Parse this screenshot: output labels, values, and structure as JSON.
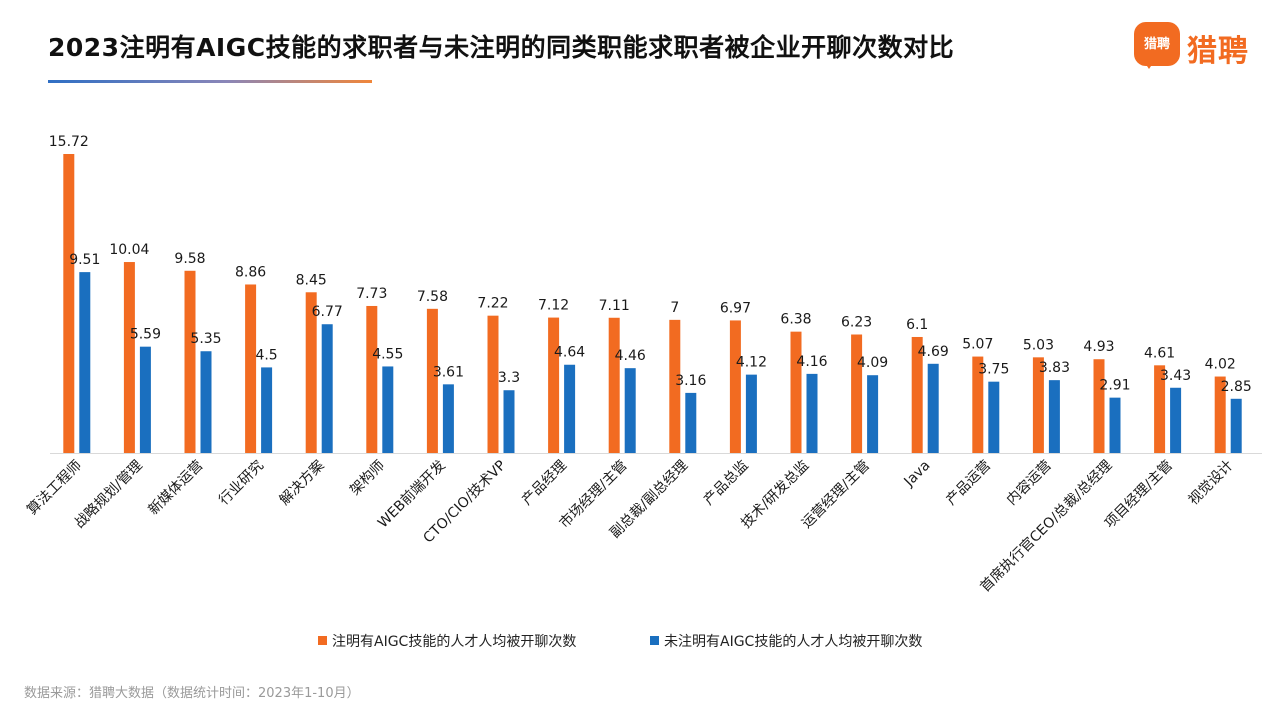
{
  "header": {
    "title": "2023注明有AIGC技能的求职者与未注明的同类职能求职者被企业开聊次数对比"
  },
  "logo": {
    "badge_text": "猎聘",
    "text": "猎聘",
    "color": "#f26b21"
  },
  "footnote": "数据来源：猎聘大数据（数据统计时间：2023年1-10月）",
  "chart_data": {
    "type": "bar",
    "title": "2023注明有AIGC技能的求职者与未注明的同类职能求职者被企业开聊次数对比",
    "xlabel": "",
    "ylabel": "",
    "ylim": [
      0,
      16
    ],
    "grid": false,
    "legend_position": "bottom",
    "categories": [
      "算法工程师",
      "战略规划/管理",
      "新媒体运营",
      "行业研究",
      "解决方案",
      "架构师",
      "WEB前端开发",
      "CTO/CIO/技术VP",
      "产品经理",
      "市场经理/主管",
      "副总裁/副总经理",
      "产品总监",
      "技术/研发总监",
      "运营经理/主管",
      "Java",
      "产品运营",
      "内容运营",
      "首席执行官CEO/总裁/总经理",
      "项目经理/主管",
      "视觉设计"
    ],
    "series": [
      {
        "name": "注明有AIGC技能的人才人均被开聊次数",
        "color": "#f26b21",
        "values": [
          15.72,
          10.04,
          9.58,
          8.86,
          8.45,
          7.73,
          7.58,
          7.22,
          7.12,
          7.11,
          7,
          6.97,
          6.38,
          6.23,
          6.1,
          5.07,
          5.03,
          4.93,
          4.61,
          4.02
        ]
      },
      {
        "name": "未注明有AIGC技能的人才人均被开聊次数",
        "color": "#1a6fbf",
        "values": [
          9.51,
          5.59,
          5.35,
          4.5,
          6.77,
          4.55,
          3.61,
          3.3,
          4.64,
          4.46,
          3.16,
          4.12,
          4.16,
          4.09,
          4.69,
          3.75,
          3.83,
          2.91,
          3.43,
          2.85
        ]
      }
    ]
  }
}
